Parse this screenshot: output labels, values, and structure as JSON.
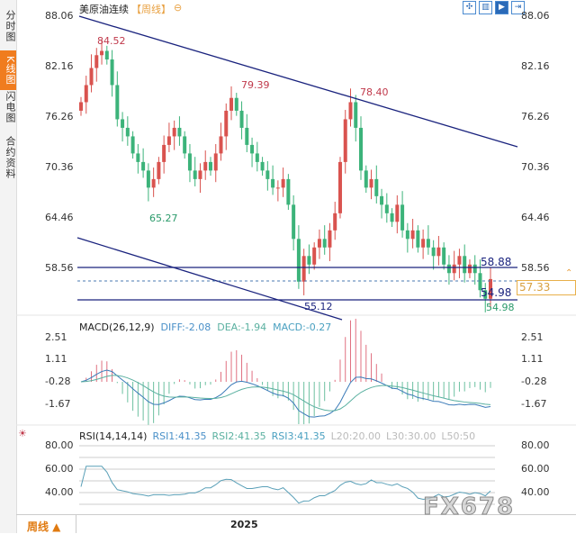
{
  "sidebar": {
    "tabs": [
      "分时图",
      "K线图",
      "闪电图",
      "合约资料"
    ],
    "active": 1
  },
  "header": {
    "title": "美原油连续",
    "period": "【周线】",
    "toolbar_icons": [
      "fit-icon",
      "panel-icon",
      "play-icon",
      "exit-icon"
    ]
  },
  "bottom": {
    "period_button": "周线 ▲",
    "year_label": "2025"
  },
  "watermark": "FX678",
  "chart_data": [
    {
      "type": "candlestick",
      "title": "美原油连续",
      "y_ticks": [
        "88.06",
        "82.16",
        "76.26",
        "70.36",
        "64.46",
        "58.56"
      ],
      "ylim": [
        55.12,
        88.06
      ],
      "closes": [
        78,
        80,
        82,
        83.5,
        84,
        83,
        80,
        76,
        75,
        74,
        72,
        71,
        70,
        68,
        69,
        71,
        73,
        74,
        75,
        74,
        72,
        70,
        69,
        70,
        71,
        70,
        72,
        74,
        77,
        78.5,
        77,
        75,
        73,
        72,
        71,
        70,
        69,
        68,
        68,
        69,
        66,
        62,
        57,
        60,
        59,
        61,
        62,
        61,
        63,
        65,
        71,
        76,
        78,
        75,
        70,
        68,
        69,
        67,
        66,
        65,
        64,
        66,
        63,
        62,
        63,
        61,
        62,
        61,
        60,
        61,
        59,
        58,
        59,
        60,
        58,
        59,
        58,
        56,
        55,
        57.3
      ],
      "annotations": {
        "high1": "84.52",
        "low1": "65.27",
        "high2": "79.39",
        "high3": "78.40",
        "low2": "55.12",
        "level_upper": "58.88",
        "level_lower": "54.98",
        "level_lower_axis": "54.98",
        "current": "57.33"
      },
      "colors": {
        "up": "#d9534f",
        "down": "#3cb37a",
        "trend": "#1a237e"
      }
    },
    {
      "type": "macd",
      "params": "MACD(26,12,9)",
      "diff": "DIFF:-2.08",
      "dea": "DEA:-1.94",
      "macd": "MACD:-0.27",
      "y_ticks": [
        "2.51",
        "1.11",
        "-0.28",
        "-1.67"
      ]
    },
    {
      "type": "rsi",
      "params": "RSI(14,14,14)",
      "rsi1": "RSI1:41.35",
      "rsi2": "RSI2:41.35",
      "rsi3": "RSI3:41.35",
      "l20": "L20:20.00",
      "l30": "L30:30.00",
      "l50": "L50:50",
      "y_ticks": [
        "80.00",
        "60.00",
        "40.00"
      ]
    }
  ]
}
